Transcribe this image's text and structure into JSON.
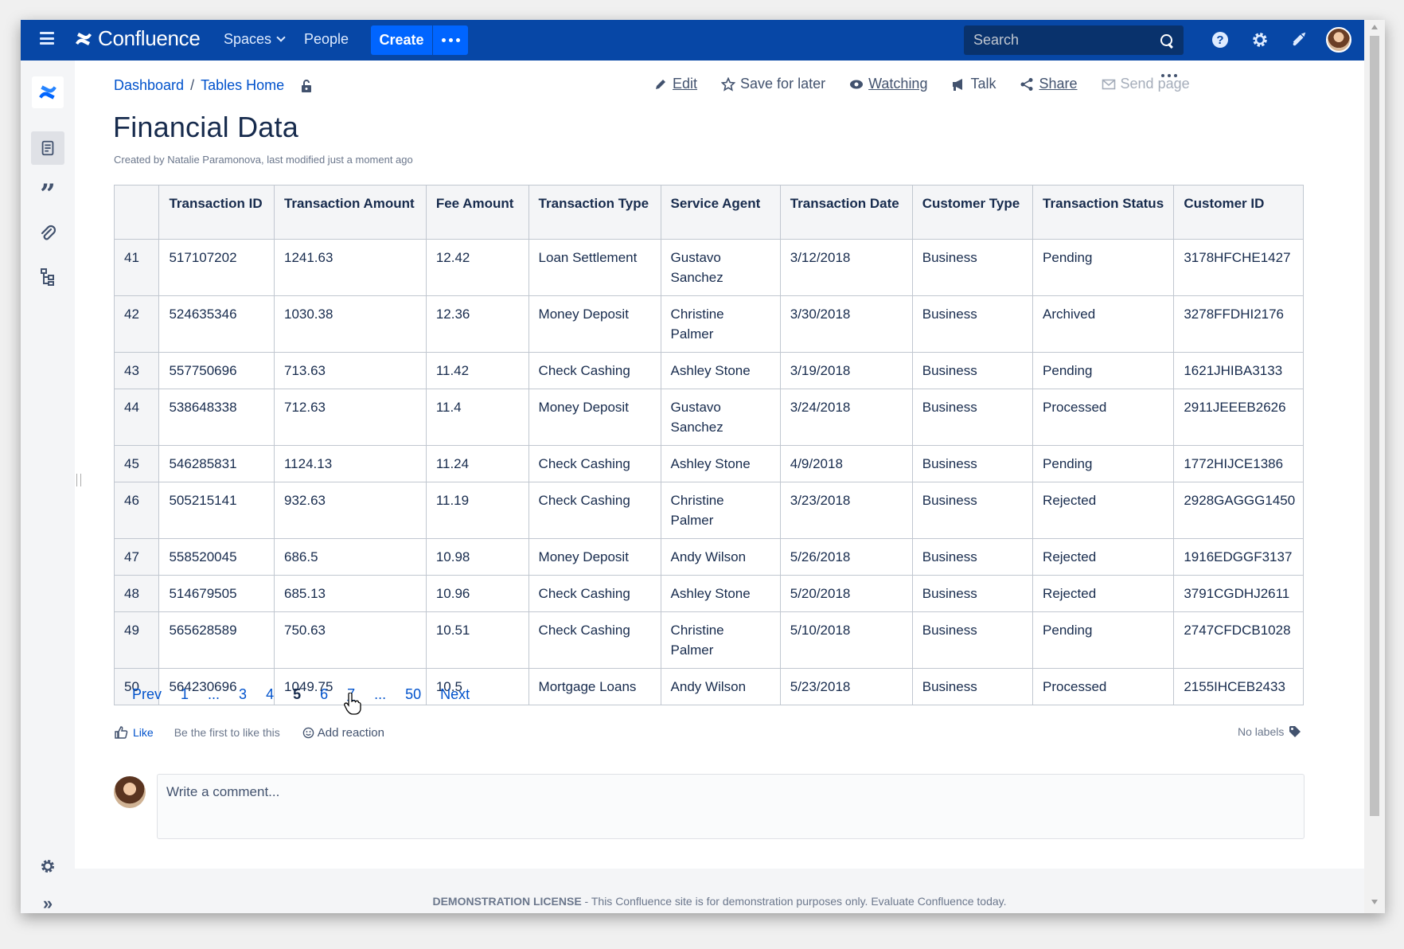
{
  "topnav": {
    "brand": "Confluence",
    "spaces": "Spaces",
    "people": "People",
    "create": "Create",
    "search_placeholder": "Search"
  },
  "breadcrumb": {
    "items": [
      "Dashboard",
      "Tables Home"
    ]
  },
  "page_actions": {
    "edit": "Edit",
    "save_for_later": "Save for later",
    "watching": "Watching",
    "talk": "Talk",
    "share": "Share",
    "send_page": "Send page"
  },
  "page": {
    "title": "Financial Data",
    "byline": "Created by Natalie Paramonova, last modified just a moment ago"
  },
  "table": {
    "headers": [
      "",
      "Transaction ID",
      "Transaction Amount",
      "Fee Amount",
      "Transaction Type",
      "Service Agent",
      "Transaction Date",
      "Customer Type",
      "Transaction Status",
      "Customer ID"
    ],
    "rows": [
      [
        "41",
        "517107202",
        "1241.63",
        "12.42",
        "Loan Settlement",
        "Gustavo Sanchez",
        "3/12/2018",
        "Business",
        "Pending",
        "3178HFCHE1427"
      ],
      [
        "42",
        "524635346",
        "1030.38",
        "12.36",
        "Money Deposit",
        "Christine Palmer",
        "3/30/2018",
        "Business",
        "Archived",
        "3278FFDHI2176"
      ],
      [
        "43",
        "557750696",
        "713.63",
        "11.42",
        "Check Cashing",
        "Ashley Stone",
        "3/19/2018",
        "Business",
        "Pending",
        "1621JHIBA3133"
      ],
      [
        "44",
        "538648338",
        "712.63",
        "11.4",
        "Money Deposit",
        "Gustavo Sanchez",
        "3/24/2018",
        "Business",
        "Processed",
        "2911JEEEB2626"
      ],
      [
        "45",
        "546285831",
        "1124.13",
        "11.24",
        "Check Cashing",
        "Ashley Stone",
        "4/9/2018",
        "Business",
        "Pending",
        "1772HIJCE1386"
      ],
      [
        "46",
        "505215141",
        "932.63",
        "11.19",
        "Check Cashing",
        "Christine Palmer",
        "3/23/2018",
        "Business",
        "Rejected",
        "2928GAGGG1450"
      ],
      [
        "47",
        "558520045",
        "686.5",
        "10.98",
        "Money Deposit",
        "Andy Wilson",
        "5/26/2018",
        "Business",
        "Rejected",
        "1916EDGGF3137"
      ],
      [
        "48",
        "514679505",
        "685.13",
        "10.96",
        "Check Cashing",
        "Ashley Stone",
        "5/20/2018",
        "Business",
        "Rejected",
        "3791CGDHJ2611"
      ],
      [
        "49",
        "565628589",
        "750.63",
        "10.51",
        "Check Cashing",
        "Christine Palmer",
        "5/10/2018",
        "Business",
        "Pending",
        "2747CFDCB1028"
      ],
      [
        "50",
        "564230696",
        "1049.75",
        "10.5",
        "Mortgage Loans",
        "Andy Wilson",
        "5/23/2018",
        "Business",
        "Processed",
        "2155IHCEB2433"
      ]
    ]
  },
  "pager": {
    "prev": "Prev",
    "pages": [
      "1",
      "...",
      "3",
      "4",
      "5",
      "6",
      "7",
      "...",
      "50"
    ],
    "current": "5",
    "next": "Next"
  },
  "reactions": {
    "like": "Like",
    "first_to_like": "Be the first to like this",
    "add_reaction": "Add reaction",
    "no_labels": "No labels"
  },
  "comment": {
    "placeholder": "Write a comment..."
  },
  "footer": {
    "license_bold": "DEMONSTRATION LICENSE",
    "license_text": " - This Confluence site is for demonstration purposes only. Evaluate Confluence today."
  },
  "colors": {
    "nav_bg": "#0747a6",
    "create_btn": "#0065ff",
    "link": "#0052cc"
  }
}
